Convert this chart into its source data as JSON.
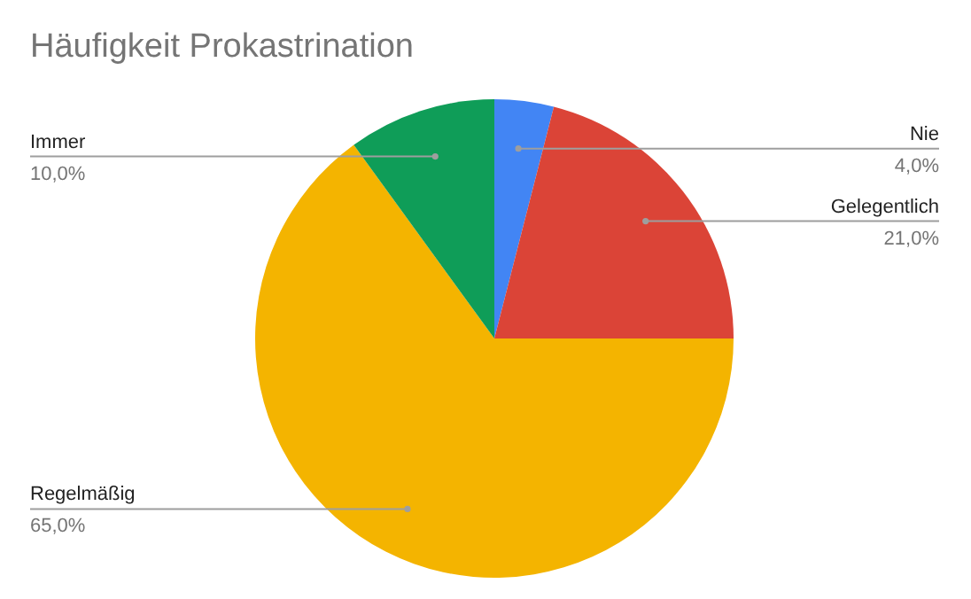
{
  "chart_data": {
    "type": "pie",
    "title": "Häufigkeit Prokastrination",
    "categories": [
      "Nie",
      "Gelegentlich",
      "Regelmäßig",
      "Immer"
    ],
    "values": [
      4,
      21,
      65,
      10
    ],
    "colors": [
      "#4285f4",
      "#db4437",
      "#f4b400",
      "#0f9d58"
    ],
    "value_labels": [
      "4,0%",
      "21,0%",
      "65,0%",
      "10,0%"
    ],
    "legend": false
  }
}
